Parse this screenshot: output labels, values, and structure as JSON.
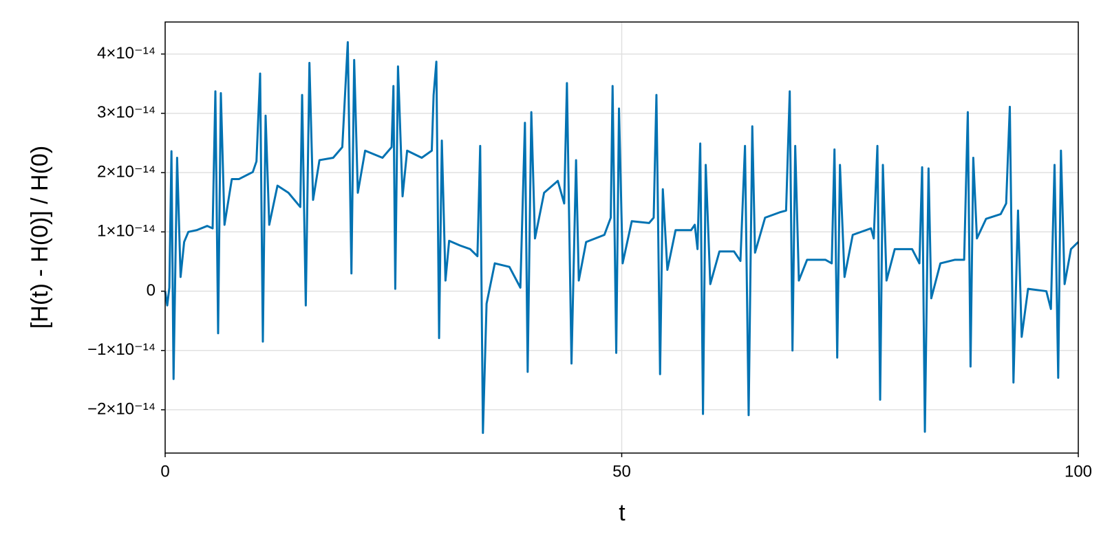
{
  "chart_data": {
    "type": "line",
    "xlabel": "t",
    "ylabel": "[H(t) - H(0)] / H(0)",
    "color": "#0072b2",
    "grid": true,
    "xlim": [
      0,
      100
    ],
    "xticks": [
      0,
      50,
      100
    ],
    "ylim": [
      -2.73e-14,
      4.54e-14
    ],
    "yticks": [
      {
        "value": -2e-14,
        "label": "−2×10⁻¹⁴"
      },
      {
        "value": -1e-14,
        "label": "−1×10⁻¹⁴"
      },
      0,
      {
        "value": 1e-14,
        "label": "1×10⁻¹⁴"
      },
      {
        "value": 2e-14,
        "label": "2×10⁻¹⁴"
      },
      {
        "value": 3e-14,
        "label": "3×10⁻¹⁴"
      },
      {
        "value": 4e-14,
        "label": "4×10⁻¹⁴"
      }
    ],
    "x": [
      0,
      0.23,
      0.46,
      0.69,
      0.92,
      1.31,
      1.69,
      2.08,
      2.54,
      3.46,
      4.6,
      5.2,
      5.5,
      5.8,
      6.1,
      6.5,
      7.3,
      8.07,
      9.6,
      10.0,
      10.4,
      10.7,
      11.0,
      11.4,
      12.3,
      13.5,
      14.8,
      15.0,
      15.4,
      15.8,
      16.2,
      16.9,
      18.4,
      19.4,
      20.0,
      20.4,
      20.7,
      21.1,
      21.9,
      23.8,
      24.8,
      25.0,
      25.2,
      25.5,
      26.0,
      26.5,
      28.1,
      29.2,
      29.4,
      29.7,
      30.0,
      30.3,
      30.7,
      31.1,
      32.3,
      33.4,
      34.2,
      34.5,
      34.8,
      35.2,
      36.1,
      37.7,
      38.9,
      39.4,
      39.7,
      40.1,
      40.5,
      41.5,
      43.0,
      43.7,
      44.0,
      44.5,
      45.0,
      45.3,
      46.1,
      48.1,
      48.8,
      49.0,
      49.4,
      49.7,
      50.1,
      51.1,
      53.0,
      53.5,
      53.8,
      54.2,
      54.5,
      55.0,
      55.9,
      57.6,
      58.0,
      58.3,
      58.6,
      58.9,
      59.2,
      59.7,
      60.7,
      62.3,
      63.0,
      63.5,
      63.9,
      64.3,
      64.6,
      65.7,
      67.3,
      68.0,
      68.4,
      68.7,
      69.0,
      69.4,
      70.3,
      72.3,
      73.0,
      73.3,
      73.6,
      73.9,
      74.4,
      75.3,
      77.3,
      77.6,
      78.0,
      78.3,
      78.6,
      79.0,
      79.9,
      81.8,
      82.6,
      82.9,
      83.2,
      83.6,
      83.9,
      84.9,
      86.5,
      87.5,
      87.9,
      88.2,
      88.5,
      88.9,
      89.9,
      91.5,
      92.1,
      92.5,
      92.9,
      93.4,
      93.8,
      94.5,
      96.5,
      97.0,
      97.4,
      97.8,
      98.1,
      98.5,
      99.2,
      100
    ],
    "values": [
      0,
      -2.4e-15,
      6e-16,
      2.36e-14,
      -1.48e-14,
      2.25e-14,
      2.4e-15,
      8.3e-15,
      1e-14,
      1.03e-14,
      1.1e-14,
      1.06e-14,
      3.37e-14,
      -7.1e-15,
      3.34e-14,
      1.12e-14,
      1.89e-14,
      1.89e-14,
      2.01e-14,
      2.19e-14,
      3.67e-14,
      -8.5e-15,
      2.96e-14,
      1.12e-14,
      1.78e-14,
      1.66e-14,
      1.42e-14,
      3.31e-14,
      -2.4e-15,
      3.85e-14,
      1.54e-14,
      2.21e-14,
      2.25e-14,
      2.43e-14,
      4.2e-14,
      3e-15,
      3.9e-14,
      1.66e-14,
      2.37e-14,
      2.25e-14,
      2.43e-14,
      3.46e-14,
      4e-16,
      3.79e-14,
      1.6e-14,
      2.37e-14,
      2.25e-14,
      2.37e-14,
      3.31e-14,
      3.87e-14,
      -7.9e-15,
      2.54e-14,
      1.8e-15,
      8.5e-15,
      7.7e-15,
      7.1e-15,
      5.9e-15,
      2.45e-14,
      -2.39e-14,
      -2.1e-15,
      4.7e-15,
      4.1e-15,
      6e-16,
      2.84e-14,
      -1.36e-14,
      3.02e-14,
      8.9e-15,
      1.66e-14,
      1.86e-14,
      1.48e-14,
      3.51e-14,
      -1.22e-14,
      2.21e-14,
      1.8e-15,
      8.3e-15,
      9.5e-15,
      1.24e-14,
      3.46e-14,
      -1.04e-14,
      3.08e-14,
      4.7e-15,
      1.18e-14,
      1.15e-14,
      1.24e-14,
      3.31e-14,
      -1.4e-14,
      1.72e-14,
      3.6e-15,
      1.03e-14,
      1.03e-14,
      1.12e-14,
      7.1e-15,
      2.49e-14,
      -2.07e-14,
      2.13e-14,
      1.2e-15,
      6.7e-15,
      6.7e-15,
      5.1e-15,
      2.45e-14,
      -2.09e-14,
      2.78e-14,
      6.5e-15,
      1.24e-14,
      1.33e-14,
      1.36e-14,
      3.37e-14,
      -1e-14,
      2.45e-14,
      1.8e-15,
      5.3e-15,
      5.3e-15,
      4.7e-15,
      2.39e-14,
      -1.12e-14,
      2.13e-14,
      2.4e-15,
      9.5e-15,
      1.06e-14,
      8.9e-15,
      2.45e-14,
      -1.83e-14,
      2.13e-14,
      1.8e-15,
      7.1e-15,
      7.1e-15,
      4.7e-15,
      2.09e-14,
      -2.37e-14,
      2.07e-14,
      -1.2e-15,
      4.7e-15,
      5.3e-15,
      5.3e-15,
      3.02e-14,
      -1.27e-14,
      2.25e-14,
      8.9e-15,
      1.22e-14,
      1.3e-14,
      1.48e-14,
      3.11e-14,
      -1.54e-14,
      1.36e-14,
      -7.7e-15,
      4e-16,
      0,
      -3e-15,
      2.13e-14,
      -1.46e-14,
      2.37e-14,
      1.2e-15,
      7.1e-15,
      8.3e-15
    ]
  }
}
